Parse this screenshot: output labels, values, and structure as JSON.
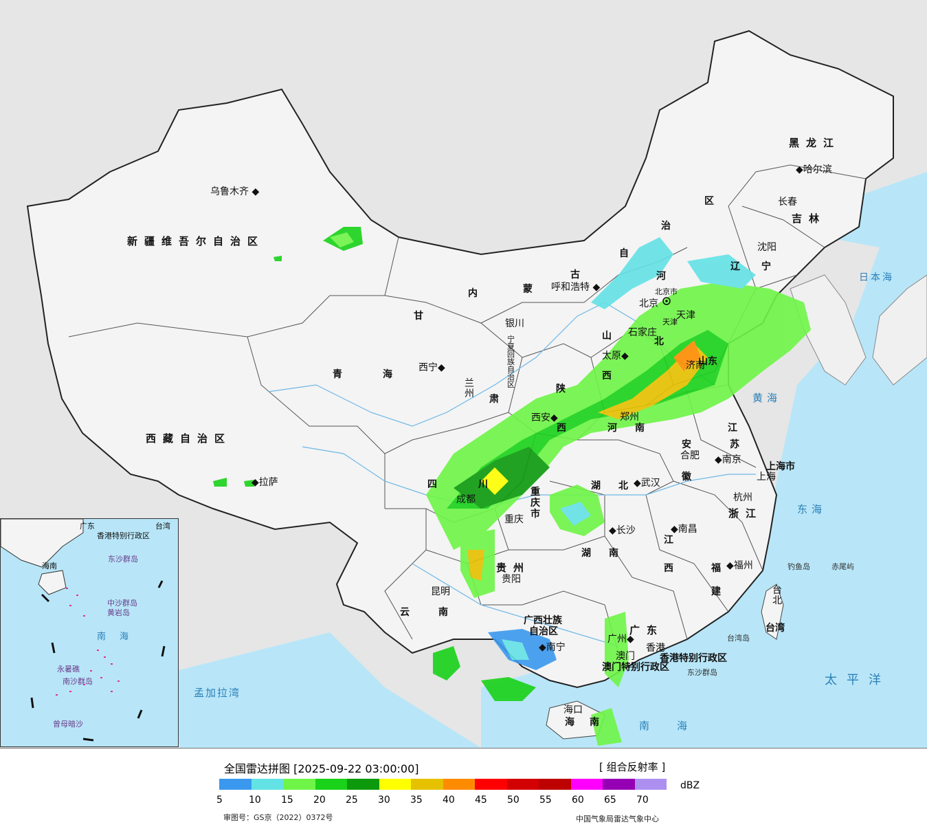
{
  "map": {
    "provinces": [
      {
        "name": "新疆维吾尔自治区"
      },
      {
        "name": "西藏自治区"
      },
      {
        "name": "青"
      },
      {
        "name": "海"
      },
      {
        "name": "甘"
      },
      {
        "name": "肃"
      },
      {
        "name": "内"
      },
      {
        "name": "蒙"
      },
      {
        "name": "古"
      },
      {
        "name": "自"
      },
      {
        "name": "治"
      },
      {
        "name": "区"
      },
      {
        "name": "黑龙江"
      },
      {
        "name": "吉林"
      },
      {
        "name": "辽"
      },
      {
        "name": "宁"
      },
      {
        "name": "河"
      },
      {
        "name": "北"
      },
      {
        "name": "山"
      },
      {
        "name": "西"
      },
      {
        "name": "陕"
      },
      {
        "name": "西"
      },
      {
        "name": "四"
      },
      {
        "name": "川"
      },
      {
        "name": "重庆市"
      },
      {
        "name": "湖"
      },
      {
        "name": "北"
      },
      {
        "name": "湖"
      },
      {
        "name": "南"
      },
      {
        "name": "贵州"
      },
      {
        "name": "云"
      },
      {
        "name": "南"
      },
      {
        "name": "广西壮族"
      },
      {
        "name": "自治区"
      },
      {
        "name": "广东"
      },
      {
        "name": "江"
      },
      {
        "name": "西"
      },
      {
        "name": "福"
      },
      {
        "name": "建"
      },
      {
        "name": "浙江"
      },
      {
        "name": "安"
      },
      {
        "name": "徽"
      },
      {
        "name": "江"
      },
      {
        "name": "苏"
      },
      {
        "name": "山"
      },
      {
        "name": "东"
      },
      {
        "name": "河"
      },
      {
        "name": "南"
      },
      {
        "name": "宁夏回族自治区"
      },
      {
        "name": "海"
      },
      {
        "name": "南"
      },
      {
        "name": "台湾"
      },
      {
        "name": "上海市"
      },
      {
        "name": "天津"
      },
      {
        "name": "北京市"
      },
      {
        "name": "香港特别行政区"
      },
      {
        "name": "澳门特别行政区"
      }
    ],
    "cities": [
      "乌鲁木齐",
      "拉萨",
      "西宁",
      "兰州",
      "银川",
      "呼和浩特",
      "太原",
      "石家庄",
      "北京",
      "天津",
      "济南",
      "郑州",
      "西安",
      "成都",
      "重庆",
      "贵阳",
      "昆明",
      "南宁",
      "广州",
      "香港",
      "澳门",
      "海口",
      "长沙",
      "武汉",
      "南昌",
      "合肥",
      "南京",
      "上海",
      "杭州",
      "福州",
      "台北",
      "沈阳",
      "长春",
      "哈尔滨"
    ],
    "seas": [
      "日本海",
      "黄海",
      "东海",
      "南海",
      "太平洋",
      "孟加拉湾"
    ],
    "islands": [
      "钓鱼岛",
      "赤尾屿",
      "东沙群岛",
      "台湾岛"
    ],
    "inset": {
      "labels": [
        "广东",
        "香港特别行政区",
        "海南",
        "南海",
        "东沙群岛",
        "中沙群岛",
        "黄岩岛",
        "南沙群岛",
        "曾母暗沙",
        "永暑礁",
        "台湾"
      ]
    }
  },
  "legend": {
    "title": "全国雷达拼图 [2025-09-22 03:00:00]",
    "product": "[ 组合反射率 ]",
    "unit": "dBZ",
    "ticks": [
      "5",
      "10",
      "15",
      "20",
      "25",
      "30",
      "35",
      "40",
      "45",
      "50",
      "55",
      "60",
      "65",
      "70"
    ],
    "colors": [
      "#3a99ee",
      "#63e2e6",
      "#6ef547",
      "#19d219",
      "#0c9a0c",
      "#ffff00",
      "#e6c100",
      "#ff8c00",
      "#ff0000",
      "#d20000",
      "#bd0000",
      "#ff00ff",
      "#9600b4",
      "#ad8ff0"
    ],
    "review_no": "审图号：GS京（2022）0372号",
    "agency": "中国气象局雷达气象中心"
  }
}
